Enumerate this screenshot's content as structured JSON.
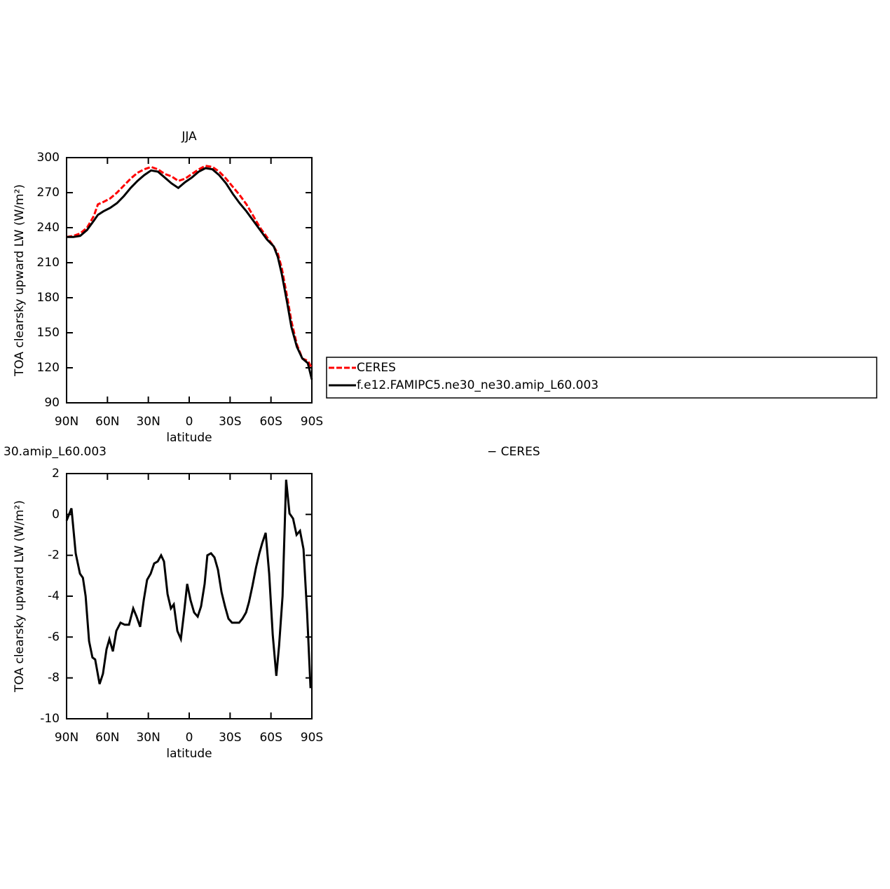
{
  "chart_data": [
    {
      "type": "line",
      "title": "JJA",
      "x_label": "latitude",
      "y_label": "TOA clearsky upward LW (W/m²)",
      "xlim": [
        90,
        -90
      ],
      "xticks": [
        {
          "value": 90,
          "label": "90N"
        },
        {
          "value": 60,
          "label": "60N"
        },
        {
          "value": 30,
          "label": "30N"
        },
        0,
        {
          "value": -30,
          "label": "30S"
        },
        {
          "value": -60,
          "label": "60S"
        },
        {
          "value": -90,
          "label": "90S"
        }
      ],
      "ylim": [
        90,
        300
      ],
      "yticks": [
        90,
        120,
        150,
        180,
        210,
        240,
        270,
        300
      ],
      "series": [
        {
          "name": "CERES",
          "color": "#ff0000",
          "dash": true,
          "x": [
            90,
            85,
            80,
            75,
            70,
            67,
            63,
            58,
            53,
            48,
            43,
            38,
            33,
            28,
            23,
            18,
            13,
            8,
            3,
            -2,
            -7,
            -12,
            -17,
            -22,
            -27,
            -32,
            -37,
            -42,
            -47,
            -52,
            -57,
            -62,
            -65,
            -68,
            -72,
            -75,
            -79,
            -83,
            -87,
            -90
          ],
          "values": [
            232,
            233,
            235,
            240,
            250,
            260,
            262,
            265,
            270,
            276,
            282,
            287,
            290,
            292,
            290,
            286,
            284,
            280,
            282,
            286,
            290,
            293,
            292,
            288,
            282,
            275,
            268,
            260,
            250,
            240,
            232,
            224,
            218,
            205,
            180,
            160,
            140,
            128,
            126,
            120
          ]
        },
        {
          "name": "f.e12.FAMIPC5.ne30_ne30.amip_L60.003",
          "color": "#000000",
          "dash": false,
          "x": [
            90,
            85,
            80,
            75,
            70,
            67,
            63,
            58,
            53,
            48,
            43,
            38,
            33,
            28,
            23,
            18,
            13,
            8,
            3,
            -2,
            -7,
            -12,
            -17,
            -22,
            -27,
            -32,
            -37,
            -42,
            -47,
            -52,
            -57,
            -62,
            -65,
            -68,
            -72,
            -75,
            -79,
            -83,
            -87,
            -90
          ],
          "values": [
            232,
            232,
            233,
            238,
            246,
            251,
            254,
            257,
            261,
            267,
            274,
            280,
            285,
            289,
            288,
            283,
            278,
            274,
            279,
            283,
            288,
            291,
            290,
            285,
            278,
            269,
            261,
            254,
            246,
            238,
            230,
            224,
            215,
            200,
            175,
            155,
            138,
            128,
            124,
            110
          ]
        }
      ]
    },
    {
      "type": "line",
      "title_left": "30.amip_L60.003",
      "title_right": "− CERES",
      "x_label": "latitude",
      "y_label": "TOA clearsky upward LW (W/m²)",
      "xlim": [
        90,
        -90
      ],
      "xticks": [
        {
          "value": 90,
          "label": "90N"
        },
        {
          "value": 60,
          "label": "60N"
        },
        {
          "value": 30,
          "label": "30N"
        },
        0,
        {
          "value": -30,
          "label": "30S"
        },
        {
          "value": -60,
          "label": "60S"
        },
        {
          "value": -90,
          "label": "90S"
        }
      ],
      "ylim": [
        -10,
        2
      ],
      "yticks": [
        -10,
        -8,
        -6,
        -4,
        -2,
        0,
        2
      ],
      "color": "#000000",
      "x": [
        90,
        86.4,
        83.3,
        80.2,
        78,
        76,
        73.5,
        71,
        69,
        65.8,
        63.3,
        60.7,
        58.6,
        56,
        53.5,
        50.4,
        47.3,
        44.2,
        41.1,
        38.6,
        36,
        33.4,
        30.9,
        28.3,
        25.7,
        23.1,
        20.6,
        18.5,
        15.9,
        13.4,
        11.3,
        8.7,
        6.1,
        3.6,
        1.5,
        -1,
        -3.6,
        -6.2,
        -8.7,
        -11.3,
        -13.3,
        -16,
        -18.5,
        -21.1,
        -23.7,
        -26.3,
        -28.8,
        -31.4,
        -34,
        -36.6,
        -39.1,
        -41.7,
        -43.8,
        -46.4,
        -49,
        -51.5,
        -53.6,
        -56.1,
        -58.7,
        -61.3,
        -63.9,
        -66,
        -68.5,
        -71.1,
        -73.6,
        -76.2,
        -78.8,
        -81.3,
        -83.9,
        -86.5,
        -89
      ],
      "values": [
        -0.3,
        0.3,
        -1.9,
        -2.9,
        -3.1,
        -4,
        -6.2,
        -7,
        -7.1,
        -8.3,
        -7.8,
        -6.6,
        -6.1,
        -6.7,
        -5.7,
        -5.3,
        -5.4,
        -5.4,
        -4.6,
        -5,
        -5.5,
        -4.2,
        -3.2,
        -2.9,
        -2.4,
        -2.3,
        -2,
        -2.3,
        -3.9,
        -4.6,
        -4.4,
        -5.7,
        -6.1,
        -4.7,
        -3.4,
        -4.2,
        -4.8,
        -5,
        -4.5,
        -3.4,
        -2,
        -1.9,
        -2.1,
        -2.7,
        -3.8,
        -4.5,
        -5.1,
        -5.3,
        -5.3,
        -5.3,
        -5.1,
        -4.8,
        -4.3,
        -3.5,
        -2.6,
        -1.9,
        -1.4,
        -0.9,
        -2.9,
        -5.9,
        -7.9,
        -6.4,
        -4,
        1.7,
        0.05,
        -0.2,
        -1,
        -0.8,
        -1.7,
        -4.8,
        -8.5
      ]
    }
  ]
}
